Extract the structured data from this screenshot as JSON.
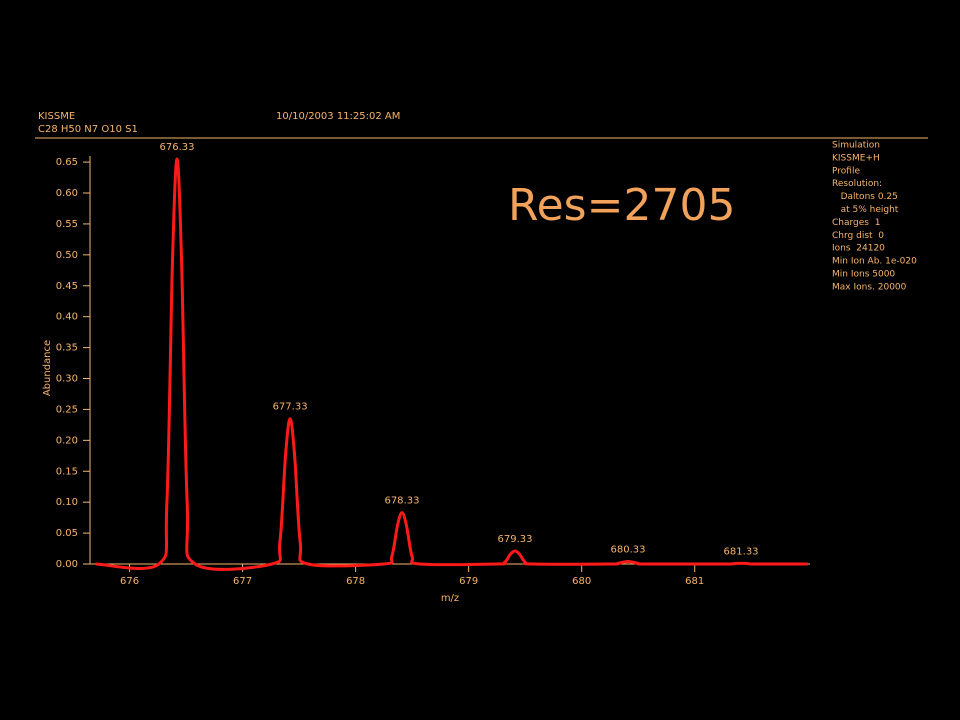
{
  "header": {
    "title": "KISSME",
    "timestamp": "10/10/2003 11:25:02 AM",
    "formula": "C28 H50 N7 O10 S1"
  },
  "info_panel": [
    "Simulation",
    "KISSME+H",
    "Profile",
    "Resolution:",
    "   Daltons 0.25",
    "   at 5% height",
    "Charges  1",
    "Chrg dist  0",
    "Ions  24120",
    "Min Ion Ab. 1e-020",
    "Min Ions 5000",
    "Max Ions. 20000"
  ],
  "big_annotation": "Res=2705",
  "chart_data": {
    "type": "line",
    "x_label": "m/z",
    "y_label": "Abundance",
    "x": [
      675.7,
      676.26,
      676.33,
      676.38,
      676.42,
      676.46,
      676.51,
      676.58,
      677.26,
      677.33,
      677.38,
      677.42,
      677.46,
      677.51,
      677.58,
      678.25,
      678.32,
      678.37,
      678.41,
      678.45,
      678.5,
      678.57,
      679.25,
      679.32,
      679.37,
      679.41,
      679.45,
      679.5,
      679.57,
      680.25,
      680.32,
      680.37,
      680.41,
      680.45,
      680.5,
      680.57,
      681.25,
      681.32,
      681.37,
      681.41,
      681.45,
      681.5,
      681.57,
      682.0
    ],
    "series": [
      {
        "color": "#ff1a1a",
        "values": [
          0,
          0,
          0.098,
          0.491,
          0.655,
          0.491,
          0.098,
          0,
          0,
          0.035,
          0.176,
          0.235,
          0.176,
          0.035,
          0,
          0,
          0.012,
          0.062,
          0.083,
          0.062,
          0.012,
          0,
          0,
          0.003,
          0.016,
          0.021,
          0.016,
          0.003,
          0,
          0,
          0.001,
          0.003,
          0.004,
          0.003,
          0.001,
          0,
          0,
          0,
          0.001,
          0.001,
          0.001,
          0,
          0,
          0
        ]
      }
    ],
    "peak_labels": [
      "676.33",
      "677.33",
      "678.33",
      "679.33",
      "680.33",
      "681.33"
    ],
    "xlim": [
      675.65,
      682.02
    ],
    "xticks": [
      676,
      677,
      678,
      679,
      680,
      681
    ],
    "ylim": [
      0,
      0.655
    ],
    "yticks": [
      {
        "value": 0,
        "label": "0.00"
      },
      {
        "value": 0.05,
        "label": "0.05"
      },
      {
        "value": 0.1,
        "label": "0.10"
      },
      {
        "value": 0.15,
        "label": "0.15"
      },
      {
        "value": 0.2,
        "label": "0.20"
      },
      {
        "value": 0.25,
        "label": "0.25"
      },
      {
        "value": 0.3,
        "label": "0.30"
      },
      {
        "value": 0.35,
        "label": "0.35"
      },
      {
        "value": 0.4,
        "label": "0.40"
      },
      {
        "value": 0.45,
        "label": "0.45"
      },
      {
        "value": 0.5,
        "label": "0.50"
      },
      {
        "value": 0.55,
        "label": "0.55"
      },
      {
        "value": 0.6,
        "label": "0.60"
      },
      {
        "value": 0.65,
        "label": "0.65"
      }
    ],
    "grid": false
  }
}
